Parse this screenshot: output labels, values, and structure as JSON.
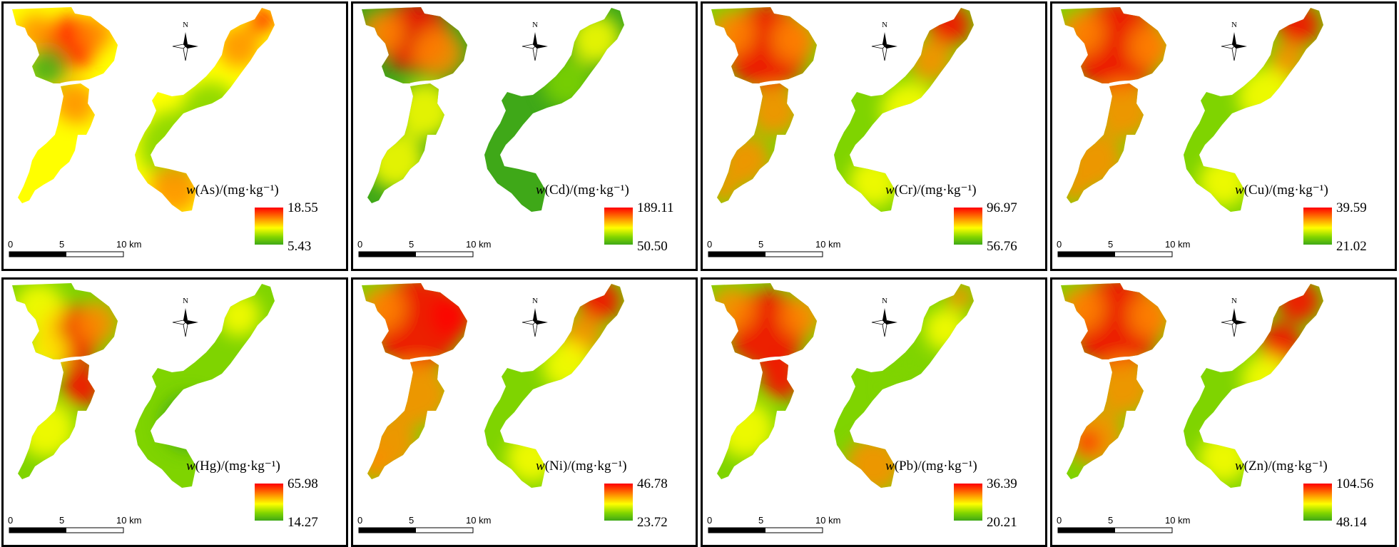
{
  "north_label": "N",
  "scale_bar": {
    "labels": [
      "0",
      "5",
      "10 km"
    ]
  },
  "legend_unit": "/(mg·kg⁻¹)",
  "panels": [
    {
      "element": "As",
      "label": "w(As)/(mg·kg⁻¹)",
      "max": "18.55",
      "min": "5.43"
    },
    {
      "element": "Cd",
      "label": "w(Cd)/(mg·kg⁻¹)",
      "max": "189.11",
      "min": "50.50"
    },
    {
      "element": "Cr",
      "label": "w(Cr)/(mg·kg⁻¹)",
      "max": "96.97",
      "min": "56.76"
    },
    {
      "element": "Cu",
      "label": "w(Cu)/(mg·kg⁻¹)",
      "max": "39.59",
      "min": "21.02"
    },
    {
      "element": "Hg",
      "label": "w(Hg)/(mg·kg⁻¹)",
      "max": "65.98",
      "min": "14.27"
    },
    {
      "element": "Ni",
      "label": "w(Ni)/(mg·kg⁻¹)",
      "max": "46.78",
      "min": "23.72"
    },
    {
      "element": "Pb",
      "label": "w(Pb)/(mg·kg⁻¹)",
      "max": "36.39",
      "min": "20.21"
    },
    {
      "element": "Zn",
      "label": "w(Zn)/(mg·kg⁻¹)",
      "max": "104.56",
      "min": "48.14"
    }
  ],
  "colors": {
    "high": "#ff0000",
    "mid_high": "#ff8c00",
    "mid": "#ffff00",
    "mid_low": "#7fd400",
    "low": "#3fa818"
  }
}
